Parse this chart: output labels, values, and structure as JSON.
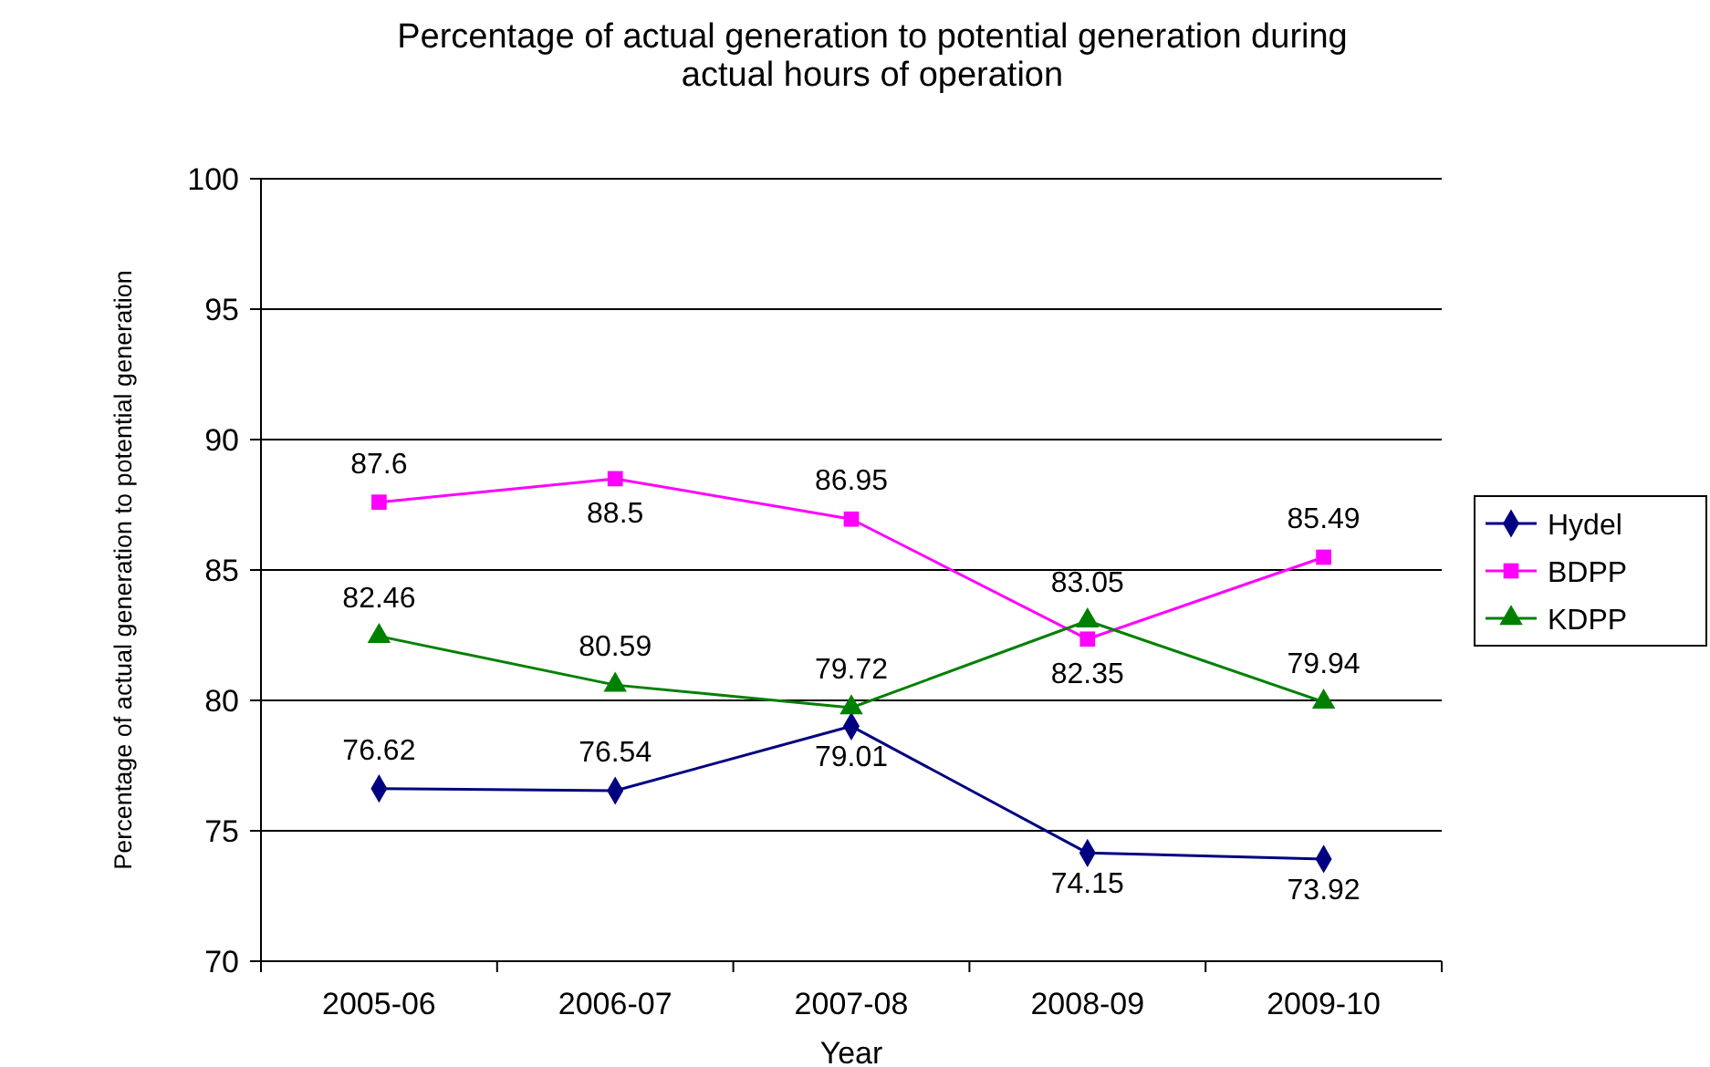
{
  "chart_data": {
    "type": "line",
    "title": "Percentage of actual generation to potential generation during actual hours of operation",
    "xlabel": "Year",
    "ylabel": "Percentage of actual generation to potential generation",
    "categories": [
      "2005-06",
      "2006-07",
      "2007-08",
      "2008-09",
      "2009-10"
    ],
    "series": [
      {
        "name": "Hydel",
        "color": "#000080",
        "marker": "diamond",
        "values": [
          76.62,
          76.54,
          79.01,
          74.15,
          73.92
        ]
      },
      {
        "name": "BDPP",
        "color": "#ff00ff",
        "marker": "square",
        "values": [
          87.6,
          88.5,
          86.95,
          82.35,
          85.49
        ]
      },
      {
        "name": "KDPP",
        "color": "#008000",
        "marker": "triangle",
        "values": [
          82.46,
          80.59,
          79.72,
          83.05,
          79.94
        ]
      }
    ],
    "ylim": [
      70,
      100
    ],
    "yticks": [
      70,
      75,
      80,
      85,
      90,
      95,
      100
    ],
    "grid": "y",
    "legend": "right",
    "data_labels": true,
    "line_style": "solid"
  }
}
